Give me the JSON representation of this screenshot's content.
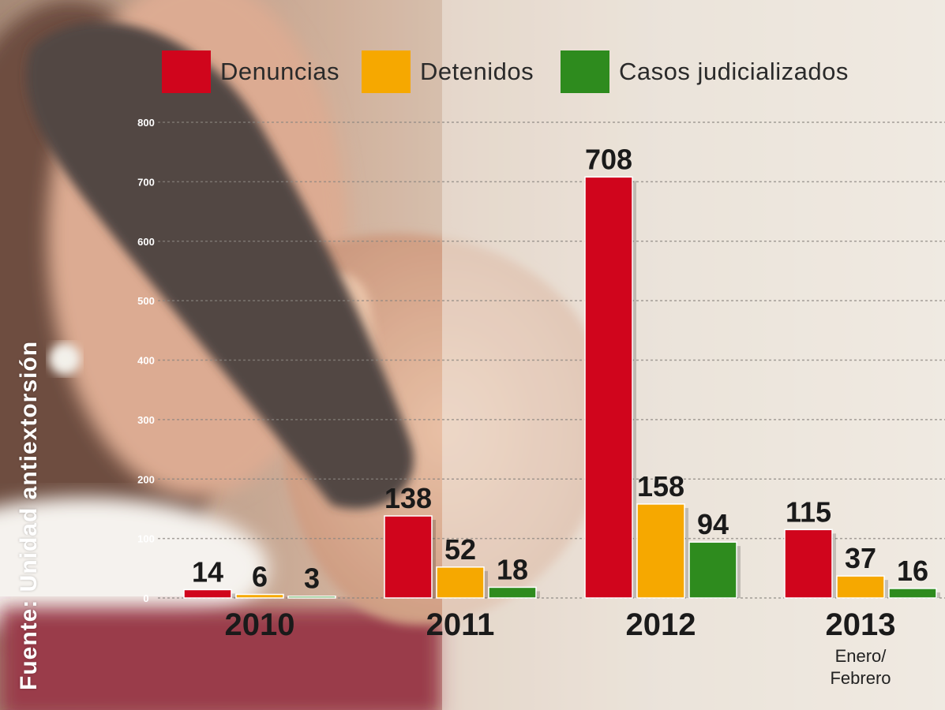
{
  "colors": {
    "denuncias": "#d0051c",
    "detenidos": "#f6a800",
    "casos": "#2e8b1e"
  },
  "legend": [
    {
      "label": "Denuncias",
      "color": "#d0051c"
    },
    {
      "label": "Detenidos",
      "color": "#f6a800"
    },
    {
      "label": "Casos judicializados",
      "color": "#2e8b1e"
    }
  ],
  "source": "Fuente: Unidad antiextorsión",
  "note": {
    "line1": "Enero/",
    "line2": "Febrero"
  },
  "chart_data": {
    "type": "bar",
    "categories": [
      "2010",
      "2011",
      "2012",
      "2013"
    ],
    "series": [
      {
        "name": "Denuncias",
        "values": [
          14,
          138,
          708,
          115
        ]
      },
      {
        "name": "Detenidos",
        "values": [
          6,
          52,
          158,
          37
        ]
      },
      {
        "name": "Casos judicializados",
        "values": [
          3,
          18,
          94,
          16
        ]
      }
    ],
    "yticks": [
      "0",
      "100",
      "200",
      "300",
      "400",
      "500",
      "600",
      "700",
      "800"
    ],
    "ylim": [
      0,
      800
    ],
    "grid": true,
    "legend_position": "top",
    "title": "",
    "xlabel": "",
    "ylabel": ""
  }
}
